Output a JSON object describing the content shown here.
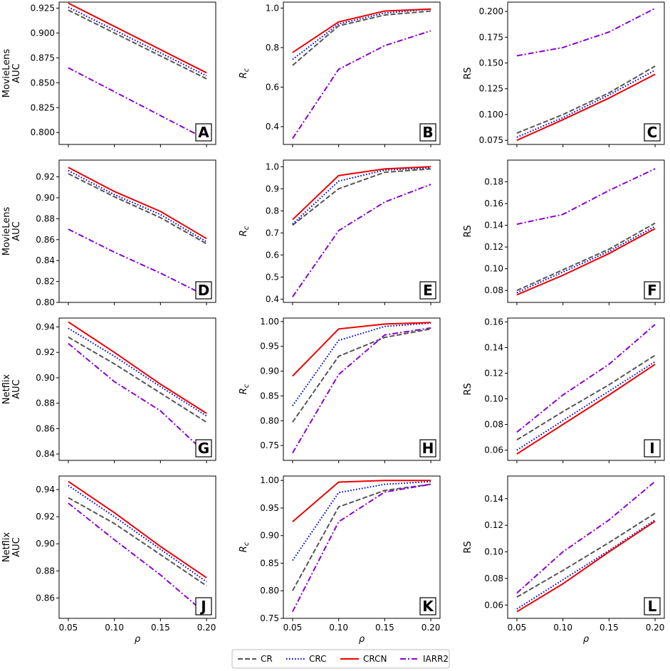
{
  "figure": {
    "legend": {
      "placement": "bottom-center",
      "entries": [
        {
          "name": "CR",
          "color": "#555555",
          "dash": "dashed"
        },
        {
          "name": "CRC",
          "color": "#0000dd",
          "dash": "dotted"
        },
        {
          "name": "CRCN",
          "color": "#ee0000",
          "dash": "solid"
        },
        {
          "name": "IARR2",
          "color": "#8a00d4",
          "dash": "dashdot"
        }
      ]
    }
  },
  "chart_data": [
    {
      "type": "line",
      "letter": "A",
      "ylabel": "AUC",
      "dataset": "MovieLens",
      "xlabel": "",
      "x": [
        0.05,
        0.2
      ],
      "xlim": [
        0.04,
        0.21
      ],
      "xticks": [
        "0.05",
        "0.10",
        "0.15",
        "0.20"
      ],
      "ylim": [
        0.788,
        0.931
      ],
      "yticks": [
        "0.800",
        "0.825",
        "0.850",
        "0.875",
        "0.900",
        "0.925"
      ],
      "series": [
        {
          "name": "CR",
          "values": [
            0.923,
            0.854
          ]
        },
        {
          "name": "CRC",
          "values": [
            0.926,
            0.857
          ]
        },
        {
          "name": "CRCN",
          "values": [
            0.93,
            0.86
          ]
        },
        {
          "name": "IARR2",
          "values": [
            0.865,
            0.793
          ]
        }
      ]
    },
    {
      "type": "line",
      "letter": "B",
      "ylabel": "R_c",
      "dataset": "",
      "xlabel": "",
      "x": [
        0.05,
        0.1,
        0.15,
        0.2
      ],
      "xlim": [
        0.04,
        0.21
      ],
      "xticks": [
        "0.05",
        "0.10",
        "0.15",
        "0.20"
      ],
      "ylim": [
        0.31,
        1.03
      ],
      "yticks": [
        "0.4",
        "0.6",
        "0.8",
        "1.0"
      ],
      "series": [
        {
          "name": "CR",
          "values": [
            0.71,
            0.91,
            0.965,
            0.985
          ]
        },
        {
          "name": "CRC",
          "values": [
            0.74,
            0.92,
            0.975,
            0.995
          ]
        },
        {
          "name": "CRCN",
          "values": [
            0.775,
            0.93,
            0.985,
            0.995
          ]
        },
        {
          "name": "IARR2",
          "values": [
            0.34,
            0.69,
            0.81,
            0.885
          ]
        }
      ]
    },
    {
      "type": "line",
      "letter": "C",
      "ylabel": "RS",
      "dataset": "",
      "xlabel": "",
      "x": [
        0.05,
        0.1,
        0.15,
        0.2
      ],
      "xlim": [
        0.04,
        0.21
      ],
      "xticks": [
        "0.05",
        "0.10",
        "0.15",
        "0.20"
      ],
      "ylim": [
        0.071,
        0.209
      ],
      "yticks": [
        "0.075",
        "0.100",
        "0.125",
        "0.150",
        "0.175",
        "0.200"
      ],
      "series": [
        {
          "name": "CR",
          "values": [
            0.082,
            0.1,
            0.121,
            0.147
          ]
        },
        {
          "name": "CRC",
          "values": [
            0.078,
            0.097,
            0.119,
            0.143
          ]
        },
        {
          "name": "CRCN",
          "values": [
            0.075,
            0.095,
            0.116,
            0.139
          ]
        },
        {
          "name": "IARR2",
          "values": [
            0.157,
            0.165,
            0.18,
            0.203
          ]
        }
      ]
    },
    {
      "type": "line",
      "letter": "D",
      "ylabel": "AUC",
      "dataset": "MovieLens",
      "xlabel": "",
      "x": [
        0.05,
        0.1,
        0.15,
        0.2
      ],
      "xlim": [
        0.04,
        0.21
      ],
      "xticks": [
        "0.05",
        "0.10",
        "0.15",
        "0.20"
      ],
      "ylim": [
        0.8,
        0.936
      ],
      "yticks": [
        "0.80",
        "0.82",
        "0.84",
        "0.86",
        "0.88",
        "0.90",
        "0.92"
      ],
      "series": [
        {
          "name": "CR",
          "values": [
            0.923,
            0.901,
            0.881,
            0.856
          ]
        },
        {
          "name": "CRC",
          "values": [
            0.926,
            0.903,
            0.884,
            0.858
          ]
        },
        {
          "name": "CRCN",
          "values": [
            0.929,
            0.906,
            0.887,
            0.861
          ]
        },
        {
          "name": "IARR2",
          "values": [
            0.87,
            0.848,
            0.828,
            0.806
          ]
        }
      ]
    },
    {
      "type": "line",
      "letter": "E",
      "ylabel": "R_c",
      "dataset": "",
      "xlabel": "",
      "x": [
        0.05,
        0.1,
        0.15,
        0.2
      ],
      "xlim": [
        0.04,
        0.21
      ],
      "xticks": [
        "0.05",
        "0.10",
        "0.15",
        "0.20"
      ],
      "ylim": [
        0.385,
        1.03
      ],
      "yticks": [
        "0.4",
        "0.5",
        "0.6",
        "0.7",
        "0.8",
        "0.9",
        "1.0"
      ],
      "series": [
        {
          "name": "CR",
          "values": [
            0.735,
            0.9,
            0.975,
            0.99
          ]
        },
        {
          "name": "CRC",
          "values": [
            0.74,
            0.935,
            0.985,
            0.995
          ]
        },
        {
          "name": "CRCN",
          "values": [
            0.76,
            0.96,
            0.99,
            1.0
          ]
        },
        {
          "name": "IARR2",
          "values": [
            0.41,
            0.71,
            0.84,
            0.92
          ]
        }
      ]
    },
    {
      "type": "line",
      "letter": "F",
      "ylabel": "RS",
      "dataset": "",
      "xlabel": "",
      "x": [
        0.05,
        0.1,
        0.15,
        0.2
      ],
      "xlim": [
        0.04,
        0.21
      ],
      "xticks": [
        "0.05",
        "0.10",
        "0.15",
        "0.20"
      ],
      "ylim": [
        0.069,
        0.2
      ],
      "yticks": [
        "0.08",
        "0.10",
        "0.12",
        "0.14",
        "0.16",
        "0.18"
      ],
      "series": [
        {
          "name": "CR",
          "values": [
            0.08,
            0.099,
            0.118,
            0.142
          ]
        },
        {
          "name": "CRC",
          "values": [
            0.078,
            0.097,
            0.116,
            0.139
          ]
        },
        {
          "name": "CRCN",
          "values": [
            0.076,
            0.094,
            0.114,
            0.137
          ]
        },
        {
          "name": "IARR2",
          "values": [
            0.141,
            0.15,
            0.172,
            0.192
          ]
        }
      ]
    },
    {
      "type": "line",
      "letter": "G",
      "ylabel": "AUC",
      "dataset": "Netflix",
      "xlabel": "",
      "x": [
        0.05,
        0.1,
        0.15,
        0.2
      ],
      "xlim": [
        0.04,
        0.21
      ],
      "xticks": [
        "0.05",
        "0.10",
        "0.15",
        "0.20"
      ],
      "ylim": [
        0.835,
        0.947
      ],
      "yticks": [
        "0.84",
        "0.86",
        "0.88",
        "0.90",
        "0.92",
        "0.94"
      ],
      "series": [
        {
          "name": "CR",
          "values": [
            0.932,
            0.911,
            0.888,
            0.865
          ]
        },
        {
          "name": "CRC",
          "values": [
            0.939,
            0.917,
            0.893,
            0.87
          ]
        },
        {
          "name": "CRCN",
          "values": [
            0.944,
            0.92,
            0.895,
            0.872
          ]
        },
        {
          "name": "IARR2",
          "values": [
            0.927,
            0.897,
            0.874,
            0.84
          ]
        }
      ]
    },
    {
      "type": "line",
      "letter": "H",
      "ylabel": "R_c",
      "dataset": "",
      "xlabel": "",
      "x": [
        0.05,
        0.1,
        0.15,
        0.2
      ],
      "xlim": [
        0.04,
        0.21
      ],
      "xticks": [
        "0.05",
        "0.10",
        "0.15",
        "0.20"
      ],
      "ylim": [
        0.72,
        1.007
      ],
      "yticks": [
        "0.75",
        "0.80",
        "0.85",
        "0.90",
        "0.95",
        "1.00"
      ],
      "series": [
        {
          "name": "CR",
          "values": [
            0.797,
            0.93,
            0.968,
            0.985
          ]
        },
        {
          "name": "CRC",
          "values": [
            0.83,
            0.962,
            0.99,
            0.997
          ]
        },
        {
          "name": "CRCN",
          "values": [
            0.89,
            0.985,
            0.995,
            0.998
          ]
        },
        {
          "name": "IARR2",
          "values": [
            0.735,
            0.893,
            0.973,
            0.987
          ]
        }
      ]
    },
    {
      "type": "line",
      "letter": "I",
      "ylabel": "RS",
      "dataset": "",
      "xlabel": "",
      "x": [
        0.05,
        0.1,
        0.15,
        0.2
      ],
      "xlim": [
        0.04,
        0.21
      ],
      "xticks": [
        "0.05",
        "0.10",
        "0.15",
        "0.20"
      ],
      "ylim": [
        0.052,
        0.163
      ],
      "yticks": [
        "0.06",
        "0.08",
        "0.10",
        "0.12",
        "0.14",
        "0.16"
      ],
      "series": [
        {
          "name": "CR",
          "values": [
            0.068,
            0.09,
            0.111,
            0.134
          ]
        },
        {
          "name": "CRC",
          "values": [
            0.06,
            0.083,
            0.106,
            0.129
          ]
        },
        {
          "name": "CRCN",
          "values": [
            0.057,
            0.08,
            0.103,
            0.127
          ]
        },
        {
          "name": "IARR2",
          "values": [
            0.074,
            0.103,
            0.127,
            0.158
          ]
        }
      ]
    },
    {
      "type": "line",
      "letter": "J",
      "ylabel": "AUC",
      "dataset": "Netflix",
      "xlabel": "ρ",
      "x": [
        0.05,
        0.1,
        0.15,
        0.2
      ],
      "xlim": [
        0.04,
        0.21
      ],
      "xticks": [
        "0.05",
        "0.10",
        "0.15",
        "0.20"
      ],
      "ylim": [
        0.845,
        0.95
      ],
      "yticks": [
        "0.86",
        "0.88",
        "0.90",
        "0.92",
        "0.94"
      ],
      "series": [
        {
          "name": "CR",
          "values": [
            0.934,
            0.915,
            0.892,
            0.869
          ]
        },
        {
          "name": "CRC",
          "values": [
            0.943,
            0.92,
            0.896,
            0.872
          ]
        },
        {
          "name": "CRCN",
          "values": [
            0.946,
            0.923,
            0.898,
            0.875
          ]
        },
        {
          "name": "IARR2",
          "values": [
            0.93,
            0.903,
            0.877,
            0.848
          ]
        }
      ]
    },
    {
      "type": "line",
      "letter": "K",
      "ylabel": "R_c",
      "dataset": "",
      "xlabel": "ρ",
      "x": [
        0.05,
        0.1,
        0.15,
        0.2
      ],
      "xlim": [
        0.04,
        0.21
      ],
      "xticks": [
        "0.05",
        "0.10",
        "0.15",
        "0.20"
      ],
      "ylim": [
        0.75,
        1.008
      ],
      "yticks": [
        "0.75",
        "0.80",
        "0.85",
        "0.90",
        "0.95",
        "1.00"
      ],
      "series": [
        {
          "name": "CR",
          "values": [
            0.8,
            0.952,
            0.982,
            0.993
          ]
        },
        {
          "name": "CRC",
          "values": [
            0.855,
            0.978,
            0.993,
            0.998
          ]
        },
        {
          "name": "CRCN",
          "values": [
            0.925,
            0.997,
            1.0,
            1.0
          ]
        },
        {
          "name": "IARR2",
          "values": [
            0.762,
            0.925,
            0.979,
            0.993
          ]
        }
      ]
    },
    {
      "type": "line",
      "letter": "L",
      "ylabel": "RS",
      "dataset": "",
      "xlabel": "ρ",
      "x": [
        0.05,
        0.1,
        0.15,
        0.2
      ],
      "xlim": [
        0.04,
        0.21
      ],
      "xticks": [
        "0.05",
        "0.10",
        "0.15",
        "0.20"
      ],
      "ylim": [
        0.05,
        0.157
      ],
      "yticks": [
        "0.06",
        "0.08",
        "0.10",
        "0.12",
        "0.14"
      ],
      "series": [
        {
          "name": "CR",
          "values": [
            0.066,
            0.086,
            0.107,
            0.129
          ]
        },
        {
          "name": "CRC",
          "values": [
            0.057,
            0.079,
            0.101,
            0.124
          ]
        },
        {
          "name": "CRCN",
          "values": [
            0.055,
            0.076,
            0.1,
            0.123
          ]
        },
        {
          "name": "IARR2",
          "values": [
            0.069,
            0.1,
            0.124,
            0.153
          ]
        }
      ]
    }
  ]
}
